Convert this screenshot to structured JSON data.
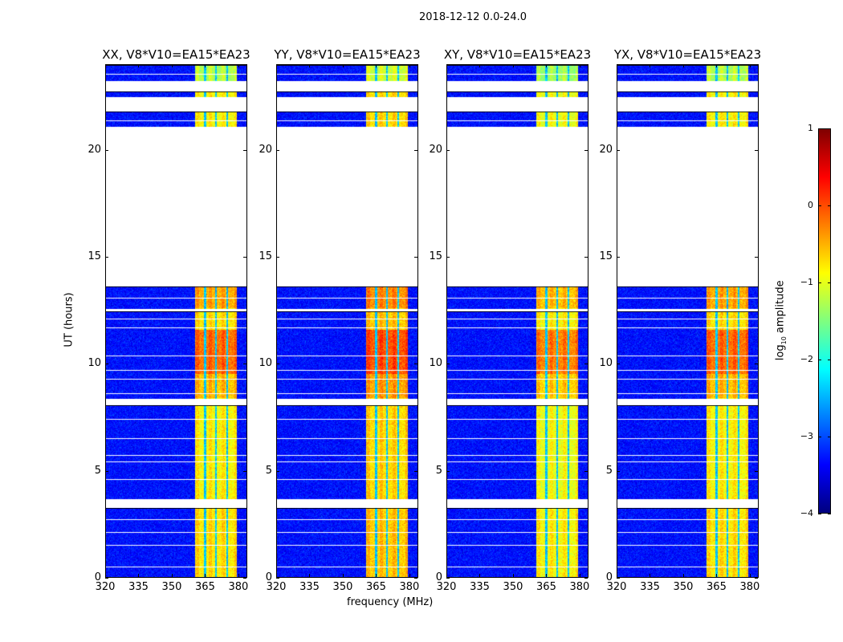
{
  "chart_data": {
    "type": "heatmap",
    "suptitle": "2018-12-12 0.0-24.0",
    "xlabel": "frequency (MHz)",
    "ylabel": "UT (hours)",
    "xlim": [
      320,
      384
    ],
    "ylim": [
      0,
      24
    ],
    "xticks": [
      320,
      335,
      350,
      365,
      380
    ],
    "yticks": [
      0,
      5,
      10,
      15,
      20
    ],
    "panels": [
      {
        "title": "XX, V8*V10=EA15*EA23",
        "band_boost": 0.0
      },
      {
        "title": "YY, V8*V10=EA15*EA23",
        "band_boost": 0.15
      },
      {
        "title": "XY, V8*V10=EA15*EA23",
        "band_boost": -0.1
      },
      {
        "title": "YX, V8*V10=EA15*EA23",
        "band_boost": 0.0
      }
    ],
    "data_segments_hours": [
      [
        0,
        3.25
      ],
      [
        3.65,
        8.06
      ],
      [
        8.36,
        12.45
      ],
      [
        12.55,
        13.6
      ],
      [
        21.1,
        21.8
      ],
      [
        22.5,
        22.75
      ],
      [
        23.25,
        24
      ]
    ],
    "flagged_rows_hours": [
      0.5,
      1.5,
      2.1,
      2.7,
      4.6,
      5.4,
      5.7,
      6.5,
      7.4,
      8.6,
      9.3,
      9.7,
      10.4,
      11.7,
      12.1,
      13.1,
      21.4,
      23.6
    ],
    "background_level": -3.3,
    "rfi_band_mhz": [
      360.5,
      379.5
    ],
    "rfi_band_gaps_mhz": [
      365.2,
      370.2,
      375.2
    ],
    "rfi_band_level_by_hour": [
      [
        0,
        -0.8
      ],
      [
        3.7,
        -0.9
      ],
      [
        8.4,
        -0.6
      ],
      [
        9.5,
        -0.2
      ],
      [
        11.6,
        -0.8
      ],
      [
        12.6,
        -0.5
      ],
      [
        21.1,
        -0.9
      ],
      [
        23.25,
        -1.3
      ]
    ],
    "colorbar": {
      "label": "log10 amplitude",
      "label_main": "log",
      "label_sub": "10",
      "label_rest": " amplitude",
      "range": [
        -4,
        1
      ],
      "ticks": [
        "1",
        "0",
        "−1",
        "−2",
        "−3",
        "−4"
      ],
      "tick_values": [
        1,
        0,
        -1,
        -2,
        -3,
        -4
      ],
      "colormap": "jet"
    }
  }
}
